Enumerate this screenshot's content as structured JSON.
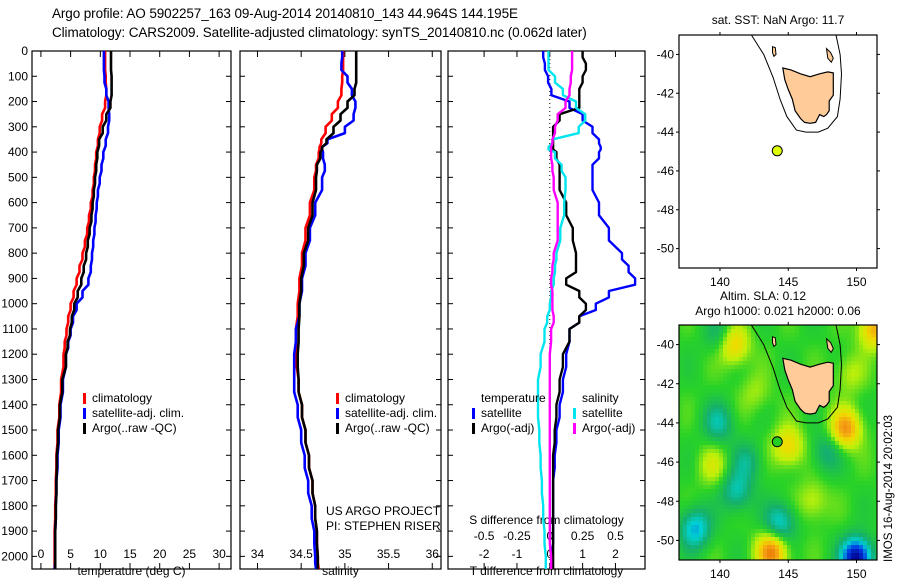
{
  "header": {
    "line1": "Argo profile: AO 5902257_163 09-Aug-2014 20140810_143 44.964S 144.195E",
    "line2": "Climatology: CARS2009. Satellite-adjusted climatology: synTS_20140810.nc (0.062d later)"
  },
  "colors": {
    "climatology": "#ff0000",
    "satellite": "#0000ff",
    "argo": "#000000",
    "sal_satellite": "#00e5ee",
    "sal_argo": "#ff00ff",
    "land": "#ffcc99",
    "float_marker_sst": "#ddff00",
    "float_marker_sla": "#22cc22"
  },
  "chart_data": [
    {
      "id": "temperature",
      "type": "line",
      "xlabel": "temperature (deg C)",
      "ylabel": "",
      "xlim": [
        -1.5,
        32
      ],
      "ylim": [
        2050,
        0
      ],
      "xticks": [
        0,
        5,
        10,
        15,
        20,
        25,
        30
      ],
      "yticks": [
        0,
        100,
        200,
        300,
        400,
        500,
        600,
        700,
        800,
        900,
        1000,
        1100,
        1200,
        1300,
        1400,
        1500,
        1600,
        1700,
        1800,
        1900,
        2000
      ],
      "legend": [
        "climatology",
        "satellite-adj. clim.",
        "Argo(..raw -QC)"
      ],
      "legend_position": "lower-center",
      "depth": [
        0,
        50,
        100,
        150,
        200,
        250,
        300,
        350,
        400,
        450,
        500,
        550,
        600,
        650,
        700,
        750,
        800,
        850,
        900,
        950,
        1000,
        1050,
        1100,
        1150,
        1200,
        1300,
        1400,
        1500,
        1600,
        1700,
        1800,
        1900,
        2000,
        2050
      ],
      "series": [
        {
          "name": "climatology",
          "values": [
            10.8,
            10.8,
            10.9,
            11.0,
            10.8,
            10.3,
            9.9,
            9.6,
            9.3,
            9.1,
            8.9,
            8.7,
            8.4,
            8.1,
            7.8,
            7.4,
            7.0,
            6.5,
            6.0,
            5.5,
            5.0,
            4.6,
            4.3,
            4.0,
            3.8,
            3.4,
            3.1,
            2.8,
            2.6,
            2.5,
            2.4,
            2.3,
            2.3,
            2.3
          ]
        },
        {
          "name": "satellite-adj. clim.",
          "values": [
            10.6,
            10.6,
            10.7,
            11.0,
            11.4,
            11.5,
            11.3,
            10.9,
            10.5,
            10.2,
            9.9,
            9.6,
            9.4,
            9.2,
            9.0,
            8.8,
            8.6,
            8.4,
            8.0,
            7.0,
            6.0,
            5.4,
            5.0,
            4.6,
            4.2,
            3.7,
            3.3,
            3.0,
            2.8,
            2.6,
            2.5,
            2.4,
            2.4,
            2.3
          ]
        },
        {
          "name": "Argo(..raw -QC)",
          "values": [
            11.8,
            11.8,
            11.9,
            11.9,
            11.7,
            11.0,
            10.4,
            9.8,
            9.5,
            9.3,
            9.1,
            8.9,
            8.7,
            8.5,
            8.2,
            7.9,
            7.6,
            7.2,
            6.8,
            6.2,
            5.6,
            5.2,
            4.9,
            4.5,
            4.2,
            3.6,
            3.2,
            2.9,
            2.7,
            2.6,
            2.5,
            2.4,
            2.4,
            2.4
          ]
        }
      ]
    },
    {
      "id": "salinity",
      "type": "line",
      "xlabel": "salinity",
      "xlim": [
        33.8,
        36.1
      ],
      "ylim": [
        2050,
        0
      ],
      "xticks": [
        34,
        34.5,
        35,
        35.5,
        36
      ],
      "xticklabels": [
        "34",
        "34.5",
        "35",
        "35.5",
        "36"
      ],
      "legend": [
        "climatology",
        "satellite-adj. clim.",
        "Argo(..raw -QC)"
      ],
      "legend_position": "lower-right",
      "annotation": [
        "US ARGO PROJECT",
        "PI: STEPHEN RISER"
      ],
      "depth": [
        0,
        50,
        100,
        150,
        200,
        250,
        300,
        350,
        380,
        400,
        450,
        500,
        600,
        700,
        800,
        900,
        1000,
        1100,
        1200,
        1300,
        1400,
        1500,
        1600,
        1700,
        1800,
        1900,
        2000,
        2050
      ],
      "series": [
        {
          "name": "climatology",
          "values": [
            34.98,
            34.98,
            34.97,
            34.96,
            34.92,
            34.85,
            34.78,
            34.73,
            34.71,
            34.7,
            34.67,
            34.65,
            34.6,
            34.55,
            34.51,
            34.48,
            34.46,
            34.44,
            34.45,
            34.47,
            34.51,
            34.55,
            34.59,
            34.63,
            34.66,
            34.68,
            34.69,
            34.7
          ]
        },
        {
          "name": "satellite-adj. clim.",
          "values": [
            34.97,
            34.96,
            35.03,
            35.08,
            35.12,
            35.1,
            35.0,
            34.8,
            34.74,
            34.75,
            34.77,
            34.74,
            34.66,
            34.6,
            34.55,
            34.51,
            34.48,
            34.44,
            34.42,
            34.42,
            34.46,
            34.5,
            34.54,
            34.58,
            34.62,
            34.65,
            34.66,
            34.67
          ]
        },
        {
          "name": "Argo(..raw -QC)",
          "values": [
            35.13,
            35.13,
            35.13,
            35.11,
            35.03,
            34.95,
            34.87,
            34.79,
            34.74,
            34.72,
            34.68,
            34.67,
            34.63,
            34.58,
            34.53,
            34.5,
            34.48,
            34.47,
            34.46,
            34.47,
            34.51,
            34.55,
            34.59,
            34.63,
            34.66,
            34.68,
            34.69,
            34.69
          ]
        }
      ]
    },
    {
      "id": "difference",
      "type": "line",
      "xlabel": "T difference from climatology",
      "xlabel_top": "S difference from climatology",
      "t_xlim": [
        -3.1,
        2.9
      ],
      "t_xticks": [
        -2,
        -1,
        0,
        1,
        2
      ],
      "s_xlim": [
        -0.775,
        0.725
      ],
      "s_xticks": [
        -0.5,
        -0.25,
        0,
        0.25,
        0.5
      ],
      "s_xticklabels": [
        "-0.5",
        "-0.25",
        "0",
        "0.25",
        "0.5"
      ],
      "ylim": [
        2050,
        0
      ],
      "legend_temperature_title": "temperature",
      "legend_salinity_title": "salinity",
      "legend": [
        "satellite",
        "Argo(-adj)",
        "satellite",
        "Argo(-adj)"
      ],
      "legend_position": "lower-center",
      "depth": [
        0,
        50,
        100,
        150,
        200,
        250,
        300,
        350,
        380,
        400,
        450,
        500,
        600,
        700,
        800,
        850,
        900,
        950,
        1000,
        1050,
        1100,
        1200,
        1300,
        1400,
        1500,
        1600,
        1700,
        1800,
        1900,
        2000,
        2050
      ],
      "series": [
        {
          "name": "temperature satellite",
          "quantity": "T",
          "values": [
            -0.2,
            -0.15,
            -0.05,
            0.05,
            0.6,
            1.0,
            1.3,
            1.5,
            1.55,
            1.5,
            1.3,
            1.3,
            1.5,
            1.8,
            2.2,
            2.4,
            2.6,
            1.8,
            1.4,
            0.9,
            0.6,
            0.5,
            0.4,
            0.3,
            0.2,
            0.15,
            0.1,
            0.1,
            0.1,
            0.05,
            0.05
          ]
        },
        {
          "name": "temperature Argo(-adj)",
          "quantity": "T",
          "values": [
            1.0,
            1.1,
            1.0,
            0.9,
            0.9,
            0.3,
            0.1,
            0.1,
            0.1,
            0.2,
            0.3,
            0.3,
            0.5,
            0.7,
            0.8,
            0.8,
            0.5,
            0.9,
            1.1,
            0.9,
            0.6,
            0.4,
            0.3,
            0.2,
            0.15,
            0.1,
            0.1,
            0.1,
            0.1,
            0.1,
            0.1
          ]
        },
        {
          "name": "salinity satellite",
          "quantity": "S",
          "values": [
            -0.01,
            -0.01,
            0.04,
            0.1,
            0.2,
            0.27,
            0.22,
            0.02,
            -0.01,
            0.04,
            0.09,
            0.12,
            0.11,
            0.08,
            0.05,
            0.04,
            0.03,
            0.01,
            0.0,
            -0.02,
            -0.04,
            -0.07,
            -0.09,
            -0.09,
            -0.08,
            -0.07,
            -0.06,
            -0.05,
            -0.04,
            -0.03,
            -0.03
          ]
        },
        {
          "name": "salinity Argo(-adj)",
          "quantity": "S",
          "values": [
            0.17,
            0.17,
            0.16,
            0.15,
            0.12,
            0.06,
            0.04,
            0.02,
            0.01,
            0.01,
            0.02,
            0.03,
            0.06,
            0.06,
            0.03,
            0.02,
            0.01,
            0.02,
            0.02,
            0.03,
            0.01,
            0.0,
            0.0,
            0.0,
            0.0,
            0.0,
            0.0,
            0.0,
            0.0,
            0.01,
            0.01
          ]
        }
      ]
    },
    {
      "id": "map-sst",
      "type": "scatter",
      "title": "sat. SST: NaN Argo: 11.7",
      "xlim": [
        137,
        151.5
      ],
      "ylim": [
        -51,
        -39
      ],
      "xticks": [
        140,
        145,
        150
      ],
      "yticks": [
        -40,
        -42,
        -44,
        -46,
        -48,
        -50
      ],
      "float_position": {
        "lon": 144.195,
        "lat": -44.964
      }
    },
    {
      "id": "map-sla",
      "type": "heatmap",
      "title_line1": "Altim. SLA: 0.12",
      "title_line2": "Argo h1000: 0.021 h2000: 0.06",
      "xlim": [
        137,
        151.5
      ],
      "ylim": [
        -51,
        -39
      ],
      "xticks": [
        140,
        145,
        150
      ],
      "yticks": [
        -40,
        -42,
        -44,
        -46,
        -48,
        -50
      ],
      "float_position": {
        "lon": 144.195,
        "lat": -44.964
      },
      "anomaly_blobs": [
        {
          "lon": 141.0,
          "lat": -40.0,
          "v": 0.6
        },
        {
          "lon": 149.2,
          "lat": -44.3,
          "v": 0.8
        },
        {
          "lon": 145.0,
          "lat": -45.2,
          "v": 0.55
        },
        {
          "lon": 143.8,
          "lat": -50.6,
          "v": 0.9
        },
        {
          "lon": 151.3,
          "lat": -39.2,
          "v": 0.7
        },
        {
          "lon": 149.5,
          "lat": -41.5,
          "v": 0.25
        },
        {
          "lon": 139.5,
          "lat": -46.2,
          "v": 0.3
        },
        {
          "lon": 139.9,
          "lat": -44.0,
          "v": -0.45
        },
        {
          "lon": 142.0,
          "lat": -46.0,
          "v": -0.35
        },
        {
          "lon": 141.2,
          "lat": -47.5,
          "v": -0.5
        },
        {
          "lon": 144.4,
          "lat": -49.1,
          "v": -0.6
        },
        {
          "lon": 138.2,
          "lat": -49.4,
          "v": -0.7
        },
        {
          "lon": 150.0,
          "lat": -50.9,
          "v": -1.4
        },
        {
          "lon": 147.8,
          "lat": -45.5,
          "v": -0.35
        },
        {
          "lon": 140.0,
          "lat": -39.5,
          "v": -0.3
        },
        {
          "lon": 146.8,
          "lat": -48.0,
          "v": 0.3
        },
        {
          "lon": 142.6,
          "lat": -42.5,
          "v": 0.2
        }
      ]
    }
  ],
  "footer": {
    "watermark": "IMOS 16-Aug-2014 20:02:03"
  }
}
